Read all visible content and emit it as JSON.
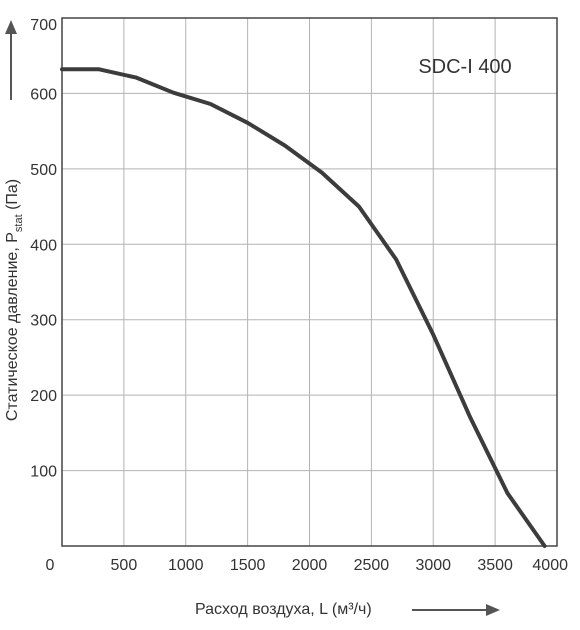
{
  "chart_data": {
    "type": "line",
    "title": "",
    "series_label": "SDC-I 400",
    "xlabel": "Расход воздуха, L (м³/ч)",
    "ylabel_main": "Статическое давление, P",
    "ylabel_sub": "stat",
    "ylabel_tail": " (Па)",
    "xlim": [
      0,
      4000
    ],
    "ylim": [
      0,
      700
    ],
    "x_ticks": [
      0,
      500,
      1000,
      1500,
      2000,
      2500,
      3000,
      3500,
      4000
    ],
    "x_tick_labels": [
      "0",
      "500",
      "1000",
      "1500",
      "2000",
      "2500",
      "3000",
      "3500",
      "4000"
    ],
    "y_ticks": [
      100,
      200,
      300,
      400,
      500,
      600,
      700
    ],
    "y_tick_labels": [
      "100",
      "200",
      "300",
      "400",
      "500",
      "600",
      "700"
    ],
    "grid": true,
    "series": [
      {
        "x": [
          0,
          300,
          600,
          900,
          1200,
          1500,
          1800,
          2100,
          2400,
          2700,
          3000,
          3300,
          3600,
          3900
        ],
        "y": [
          632,
          632,
          621,
          601,
          586,
          561,
          531,
          495,
          450,
          380,
          280,
          170,
          70,
          0
        ]
      }
    ],
    "colors": {
      "line": "#3c3c3c",
      "grid": "#b3b3b3",
      "axis": "#444444",
      "arrow": "#555555"
    }
  }
}
